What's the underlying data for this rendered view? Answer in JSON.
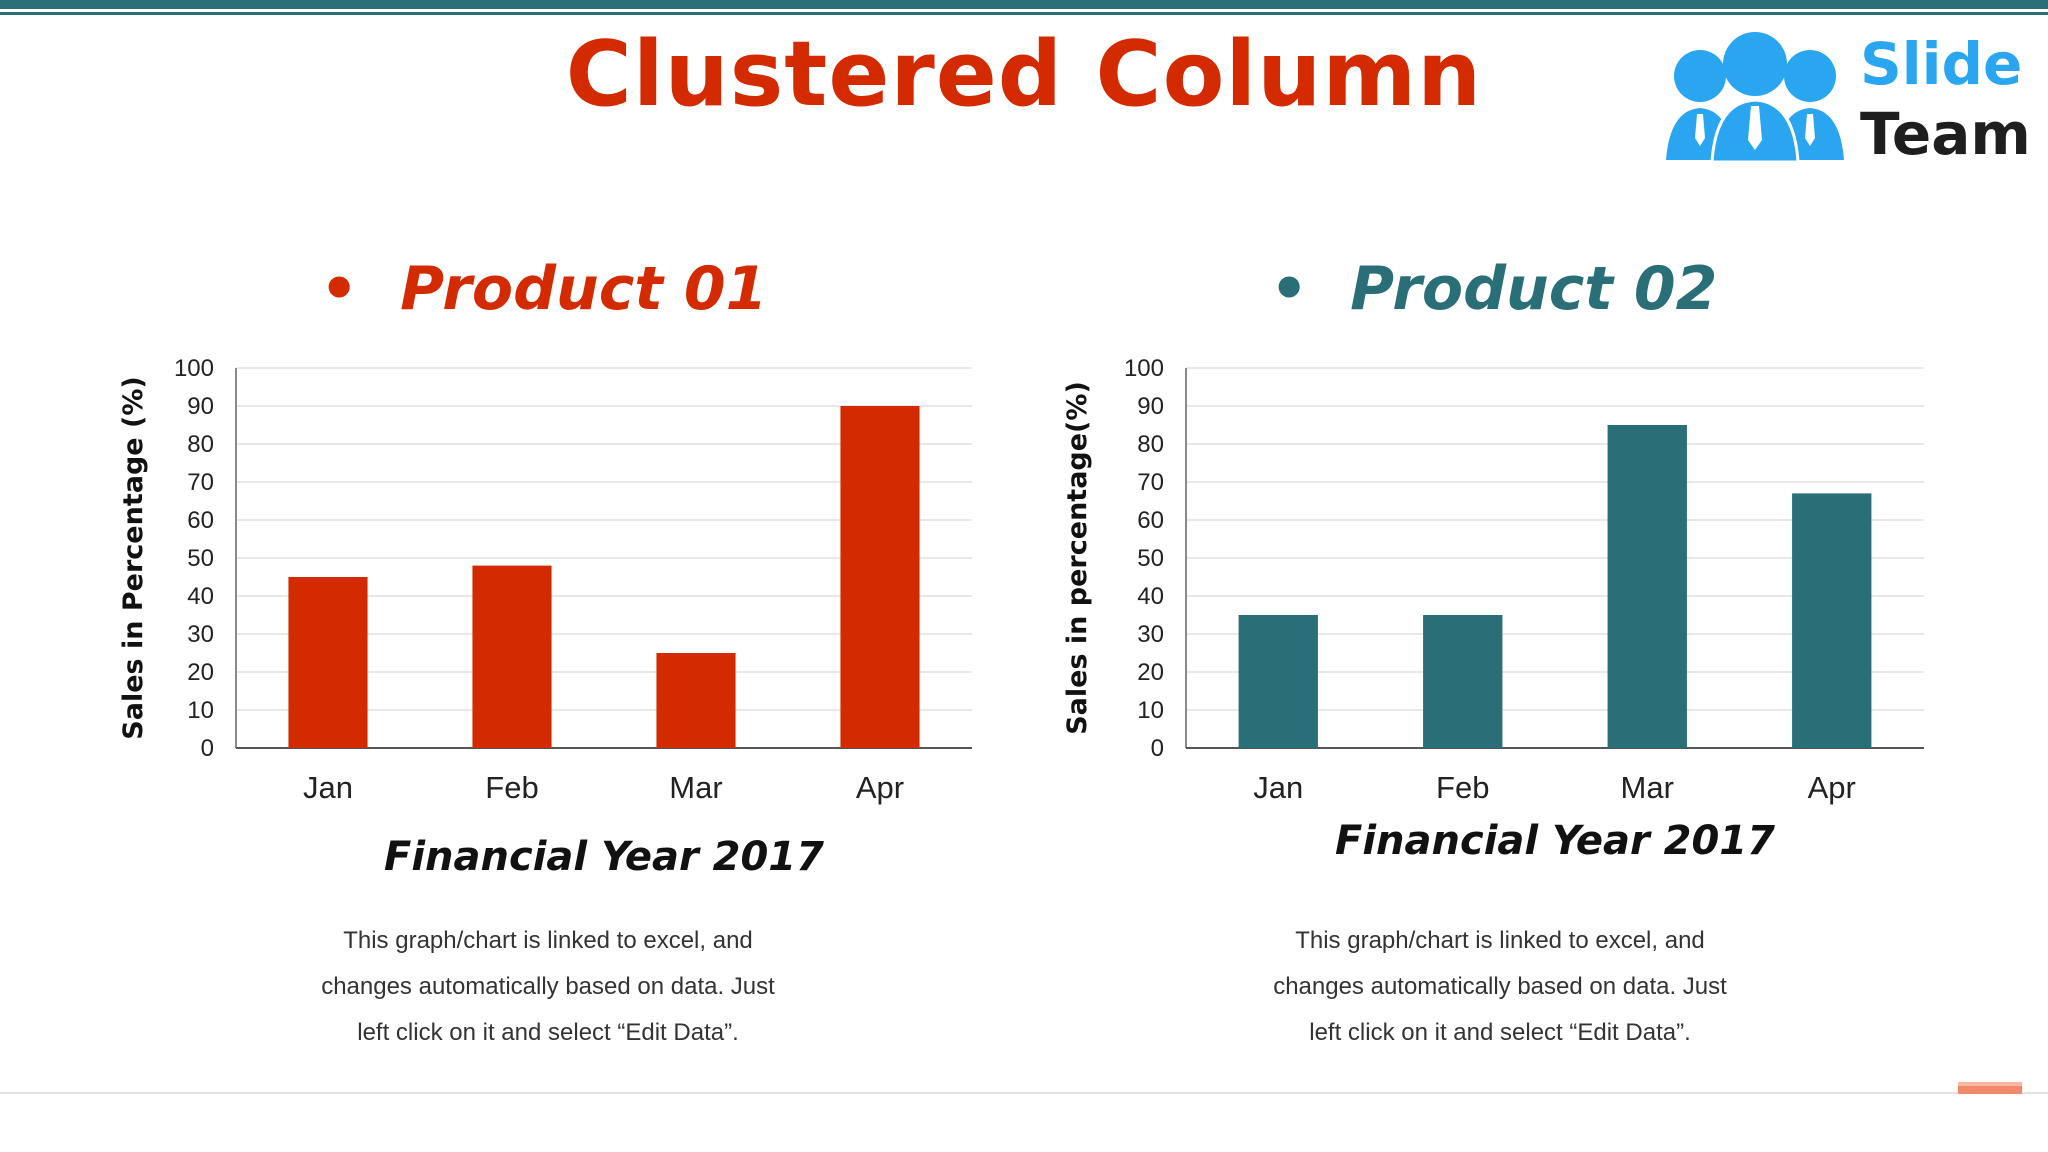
{
  "slide": {
    "title": "Clustered Column",
    "logo": {
      "line1": "Slide",
      "line2": "Team"
    },
    "caption_lines": [
      "This graph/chart is linked to excel, and",
      "changes automatically based on data. Just",
      "left click on it and select “Edit Data”."
    ]
  },
  "colors": {
    "accent_bar": "#2a6e78",
    "product1": "#d42a00",
    "product2": "#2a6e78"
  },
  "chart_data": [
    {
      "type": "bar",
      "title": "Product 01",
      "categories": [
        "Jan",
        "Feb",
        "Mar",
        "Apr"
      ],
      "values": [
        45,
        48,
        25,
        90
      ],
      "xlabel": "Financial Year 2017",
      "ylabel": "Sales in Percentage (%)",
      "ylim": [
        0,
        100
      ],
      "yticks": [
        0,
        10,
        20,
        30,
        40,
        50,
        60,
        70,
        80,
        90,
        100
      ],
      "grid": true,
      "color": "#d42a00"
    },
    {
      "type": "bar",
      "title": "Product 02",
      "categories": [
        "Jan",
        "Feb",
        "Mar",
        "Apr"
      ],
      "values": [
        35,
        35,
        85,
        67
      ],
      "xlabel": "Financial Year 2017",
      "ylabel": "Sales in percentage(%)",
      "ylim": [
        0,
        100
      ],
      "yticks": [
        0,
        10,
        20,
        30,
        40,
        50,
        60,
        70,
        80,
        90,
        100
      ],
      "grid": true,
      "color": "#2a6e78"
    }
  ]
}
